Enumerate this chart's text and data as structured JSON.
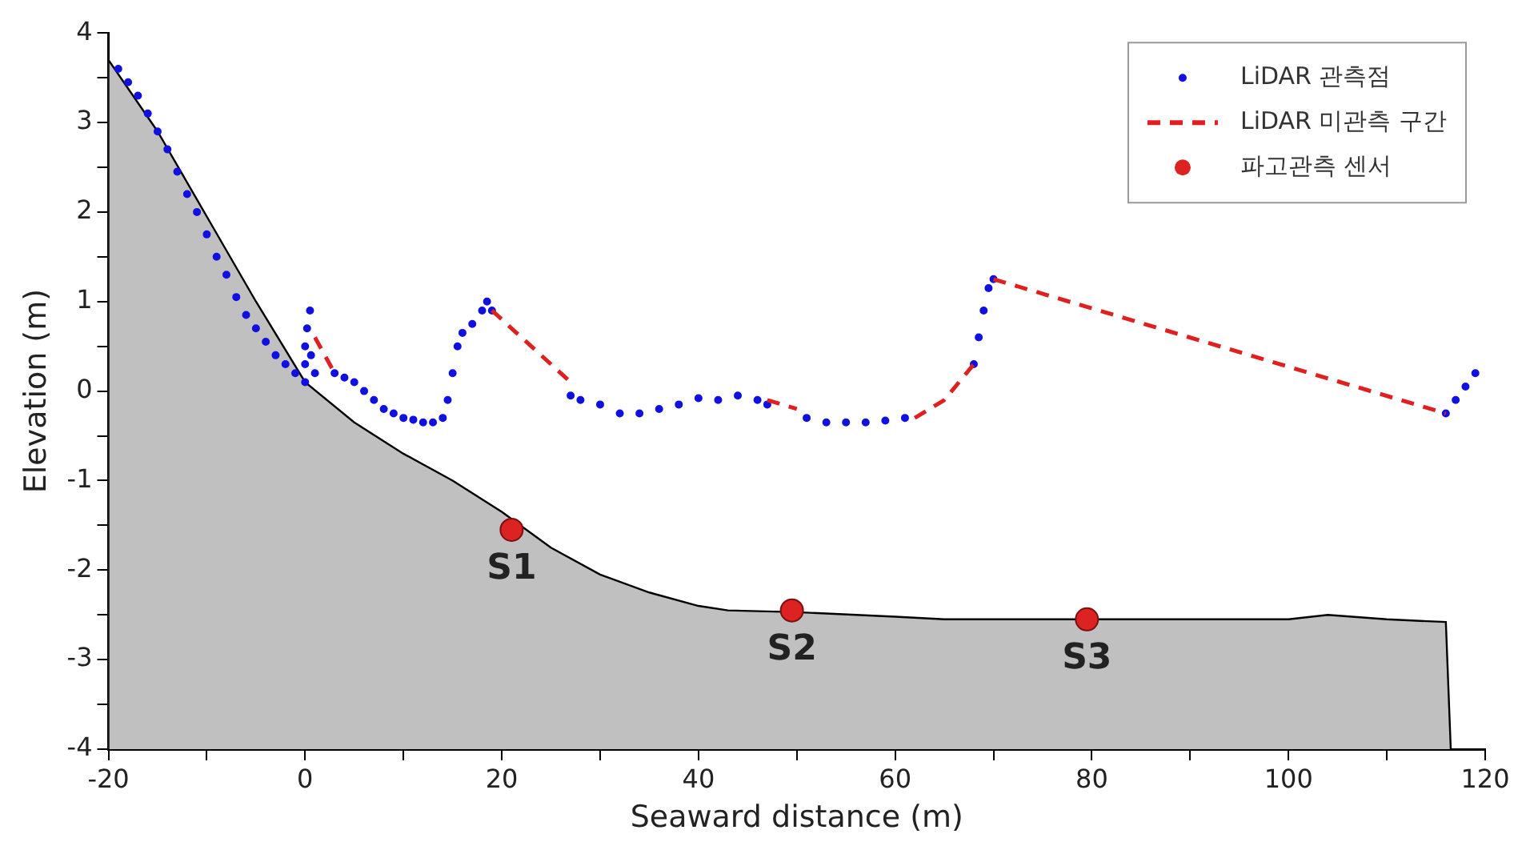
{
  "chart_data": {
    "type": "scatter",
    "xlabel": "Seaward distance (m)",
    "ylabel": "Elevation (m)",
    "xlim": [
      -20,
      120
    ],
    "xticks": [
      -20,
      {
        "value": -10,
        "label": null
      },
      0,
      {
        "value": 10,
        "label": null
      },
      20,
      {
        "value": 30,
        "label": null
      },
      40,
      {
        "value": 50,
        "label": null
      },
      60,
      {
        "value": 70,
        "label": null
      },
      80,
      {
        "value": 90,
        "label": null
      },
      100,
      {
        "value": 110,
        "label": null
      },
      120
    ],
    "ylim": [
      -4,
      4
    ],
    "yticks": [
      -4,
      {
        "value": -3.5,
        "label": null
      },
      -3,
      {
        "value": -2.5,
        "label": null
      },
      -2,
      {
        "value": -1.5,
        "label": null
      },
      -1,
      {
        "value": -0.5,
        "label": null
      },
      0,
      {
        "value": 0.5,
        "label": null
      },
      1,
      {
        "value": 1.5,
        "label": null
      },
      2,
      {
        "value": 2.5,
        "label": null
      },
      3,
      {
        "value": 3.5,
        "label": null
      },
      4
    ],
    "legend": "top right",
    "series": [
      {
        "type": "area",
        "color": "#c0c0c0",
        "x": [
          -20,
          -20,
          -15,
          -10,
          -5,
          0,
          5,
          10,
          15,
          20,
          25,
          30,
          35,
          40,
          43,
          50,
          60,
          65,
          80,
          100,
          104,
          110,
          116,
          116.5
        ],
        "values": [
          -4,
          3.7,
          2.9,
          1.95,
          1.0,
          0.1,
          -0.35,
          -0.7,
          -1.0,
          -1.35,
          -1.75,
          -2.05,
          -2.25,
          -2.4,
          -2.45,
          -2.47,
          -2.52,
          -2.55,
          -2.55,
          -2.55,
          -2.5,
          -2.55,
          -2.58,
          -4
        ]
      },
      {
        "type": "scatter",
        "name": "LiDAR 관측점",
        "color": "#1010e0",
        "marker": "circle",
        "x": [
          -19,
          -18,
          -17,
          -16,
          -15,
          -14,
          -13,
          -12,
          -11,
          -10,
          -9,
          -8,
          -7,
          -6,
          -5,
          -4,
          -3,
          -2,
          -1,
          0,
          0,
          0,
          0.2,
          0.5,
          0.6,
          1,
          3,
          4,
          5,
          6,
          7,
          8,
          9,
          10,
          11,
          12,
          13,
          14,
          14.5,
          15,
          15.5,
          16,
          17,
          18,
          18.5,
          19,
          27,
          28,
          30,
          32,
          34,
          36,
          38,
          40,
          42,
          44,
          46,
          47,
          51,
          53,
          55,
          57,
          59,
          61,
          68,
          68.5,
          69,
          69.5,
          70,
          116,
          117,
          118,
          119
        ],
        "values": [
          3.6,
          3.45,
          3.3,
          3.1,
          2.9,
          2.7,
          2.45,
          2.2,
          2.0,
          1.75,
          1.5,
          1.3,
          1.05,
          0.85,
          0.7,
          0.55,
          0.4,
          0.3,
          0.2,
          0.1,
          0.3,
          0.5,
          0.7,
          0.9,
          0.4,
          0.2,
          0.2,
          0.15,
          0.1,
          0.0,
          -0.1,
          -0.2,
          -0.25,
          -0.3,
          -0.32,
          -0.35,
          -0.35,
          -0.3,
          -0.1,
          0.2,
          0.5,
          0.65,
          0.75,
          0.9,
          1.0,
          0.9,
          -0.05,
          -0.1,
          -0.15,
          -0.25,
          -0.25,
          -0.2,
          -0.15,
          -0.08,
          -0.1,
          -0.05,
          -0.1,
          -0.15,
          -0.3,
          -0.35,
          -0.35,
          -0.35,
          -0.33,
          -0.3,
          0.3,
          0.6,
          0.9,
          1.15,
          1.25,
          -0.25,
          -0.1,
          0.05,
          0.2
        ]
      },
      {
        "type": "line",
        "name": "LiDAR 미관측 구간",
        "color": "#e02020",
        "line_style": "dashed",
        "x": [
          1,
          3,
          3.5,
          19,
          23,
          27,
          28,
          47,
          50,
          51,
          62,
          65,
          68,
          69,
          70,
          116
        ],
        "values": [
          0.6,
          0.2,
          null,
          0.9,
          0.5,
          0.1,
          null,
          -0.1,
          -0.2,
          null,
          -0.3,
          -0.1,
          0.3,
          null,
          1.25,
          -0.25
        ]
      },
      {
        "type": "scatter",
        "name": "파고관측 센서",
        "color": "#dd2222",
        "marker": "circle",
        "x": [
          21,
          49.5,
          79.5
        ],
        "values": [
          -1.55,
          -2.45,
          -2.55
        ]
      }
    ],
    "annotations": [
      {
        "text": "S1",
        "x": 21,
        "y": -1.55
      },
      {
        "text": "S2",
        "x": 49.5,
        "y": -2.45
      },
      {
        "text": "S3",
        "x": 79.5,
        "y": -2.55
      }
    ]
  }
}
